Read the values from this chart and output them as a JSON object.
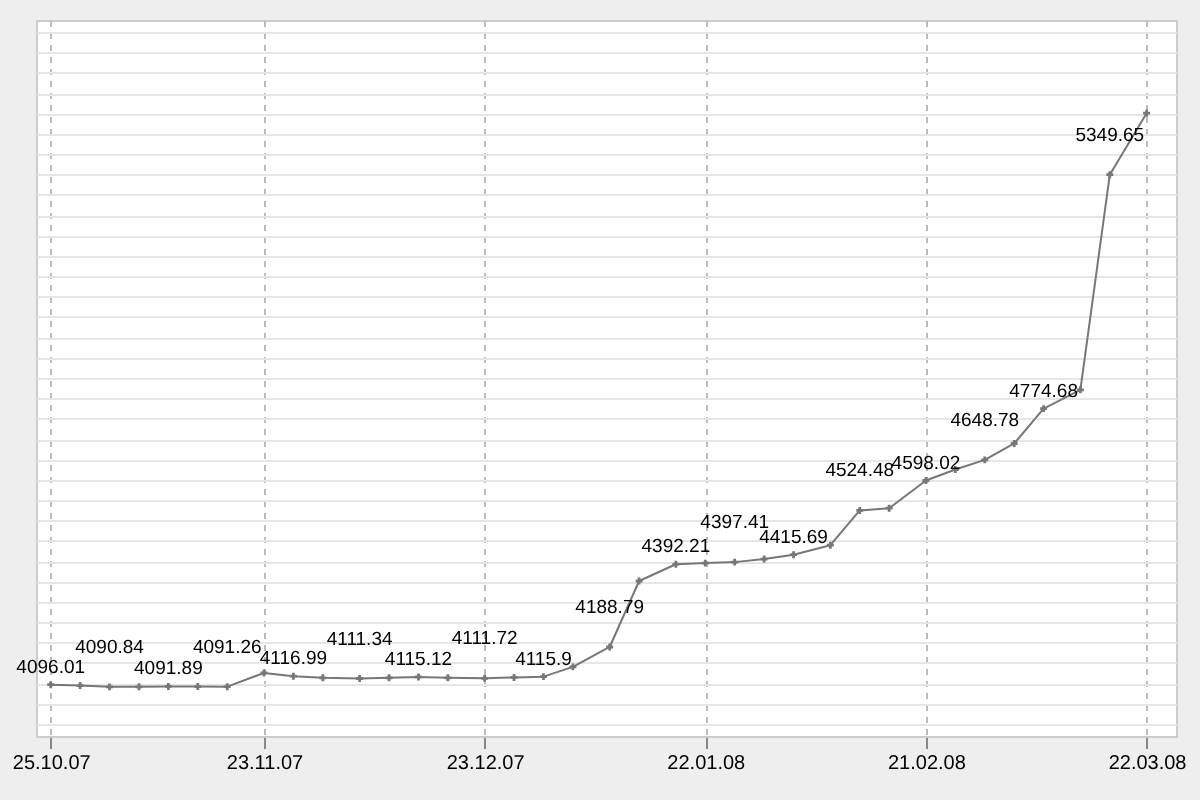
{
  "chart_data": {
    "type": "line",
    "x": [
      "2007-10-25",
      "2007-10-29",
      "2007-11-02",
      "2007-11-06",
      "2007-11-10",
      "2007-11-14",
      "2007-11-18",
      "2007-11-23",
      "2007-11-27",
      "2007-12-01",
      "2007-12-06",
      "2007-12-10",
      "2007-12-14",
      "2007-12-18",
      "2007-12-23",
      "2007-12-27",
      "2007-12-31",
      "2008-01-04",
      "2008-01-09",
      "2008-01-13",
      "2008-01-18",
      "2008-01-22",
      "2008-01-26",
      "2008-01-30",
      "2008-02-03",
      "2008-02-08",
      "2008-02-12",
      "2008-02-16",
      "2008-02-21",
      "2008-02-25",
      "2008-02-29",
      "2008-03-04",
      "2008-03-08",
      "2008-03-13",
      "2008-03-17",
      "2008-03-22"
    ],
    "series": [
      {
        "color": "#777777",
        "values": [
          4096.01,
          4094,
          4090.84,
          4091,
          4091.89,
          4091.5,
          4091.26,
          4125,
          4116.99,
          4113,
          4111.34,
          4113,
          4115.12,
          4113,
          4111.72,
          4114,
          4115.9,
          4140,
          4188.79,
          4351,
          4392.21,
          4395,
          4397.41,
          4405,
          4415.69,
          4439,
          4524.48,
          4530,
          4598.02,
          4625,
          4648.78,
          4689,
          4774.68,
          4821,
          5349.65,
          5501
        ],
        "value_labels": [
          "4096.01",
          null,
          "4090.84",
          null,
          "4091.89",
          null,
          "4091.26",
          null,
          "4116.99",
          null,
          "4111.34",
          null,
          "4115.12",
          null,
          "4111.72",
          null,
          "4115.9",
          null,
          "4188.79",
          null,
          "4392.21",
          null,
          "4397.41",
          null,
          "4415.69",
          null,
          "4524.48",
          null,
          "4598.02",
          null,
          "4648.78",
          null,
          "4774.68",
          null,
          "5349.65",
          null
        ]
      }
    ],
    "xlim": [
      "2007-10-23",
      "2008-03-26"
    ],
    "xticks": [
      {
        "value": "2007-10-25",
        "label": "25.10.07"
      },
      {
        "value": "2007-11-23",
        "label": "23.11.07"
      },
      {
        "value": "2007-12-23",
        "label": "23.12.07"
      },
      {
        "value": "2008-01-22",
        "label": "22.01.08"
      },
      {
        "value": "2008-02-21",
        "label": "21.02.08"
      },
      {
        "value": "2008-03-22",
        "label": "22.03.08"
      }
    ],
    "ylim": [
      3970,
      5730
    ],
    "grid": true,
    "tick_labels": "x",
    "marker": "cross",
    "line_style": "solid"
  }
}
